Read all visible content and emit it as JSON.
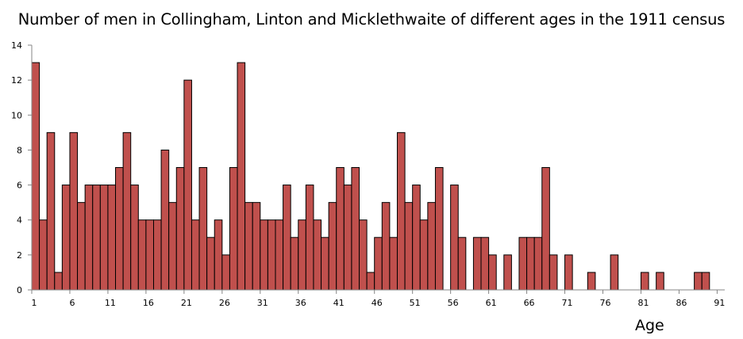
{
  "chart_data": {
    "type": "bar",
    "title": "Number of men in Collingham, Linton and Micklethwaite of different ages in the 1911 census",
    "xlabel": "Age",
    "ylabel": "",
    "ylim": [
      0,
      14
    ],
    "yticks": [
      0,
      2,
      4,
      6,
      8,
      10,
      12,
      14
    ],
    "xtick_labels": [
      "1",
      "6",
      "11",
      "16",
      "21",
      "26",
      "31",
      "36",
      "41",
      "46",
      "51",
      "56",
      "61",
      "66",
      "71",
      "76",
      "81",
      "86",
      "91"
    ],
    "categories": [
      1,
      2,
      3,
      4,
      5,
      6,
      7,
      8,
      9,
      10,
      11,
      12,
      13,
      14,
      15,
      16,
      17,
      18,
      19,
      20,
      21,
      22,
      23,
      24,
      25,
      26,
      27,
      28,
      29,
      30,
      31,
      32,
      33,
      34,
      35,
      36,
      37,
      38,
      39,
      40,
      41,
      42,
      43,
      44,
      45,
      46,
      47,
      48,
      49,
      50,
      51,
      52,
      53,
      54,
      55,
      56,
      57,
      58,
      59,
      60,
      61,
      62,
      63,
      64,
      65,
      66,
      67,
      68,
      69,
      70,
      71,
      72,
      73,
      74,
      75,
      76,
      77,
      78,
      79,
      80,
      81,
      82,
      83,
      84,
      85,
      86,
      87,
      88,
      89,
      90,
      91
    ],
    "values": [
      13,
      4,
      9,
      1,
      6,
      9,
      5,
      6,
      6,
      6,
      6,
      7,
      9,
      6,
      4,
      4,
      4,
      8,
      5,
      7,
      12,
      4,
      7,
      3,
      4,
      2,
      7,
      13,
      5,
      5,
      4,
      4,
      4,
      6,
      3,
      4,
      6,
      4,
      3,
      5,
      7,
      6,
      7,
      4,
      1,
      3,
      5,
      3,
      9,
      5,
      6,
      4,
      5,
      7,
      0,
      6,
      3,
      0,
      3,
      3,
      2,
      0,
      2,
      0,
      3,
      3,
      3,
      7,
      2,
      0,
      2,
      0,
      0,
      1,
      0,
      0,
      2,
      0,
      0,
      0,
      1,
      0,
      1,
      0,
      0,
      0,
      0,
      1,
      1,
      0,
      0
    ],
    "grid": false,
    "legend": "none",
    "colors": {
      "bar_fill": "#c0504d",
      "bar_stroke": "#000000",
      "axis": "#868686"
    }
  }
}
